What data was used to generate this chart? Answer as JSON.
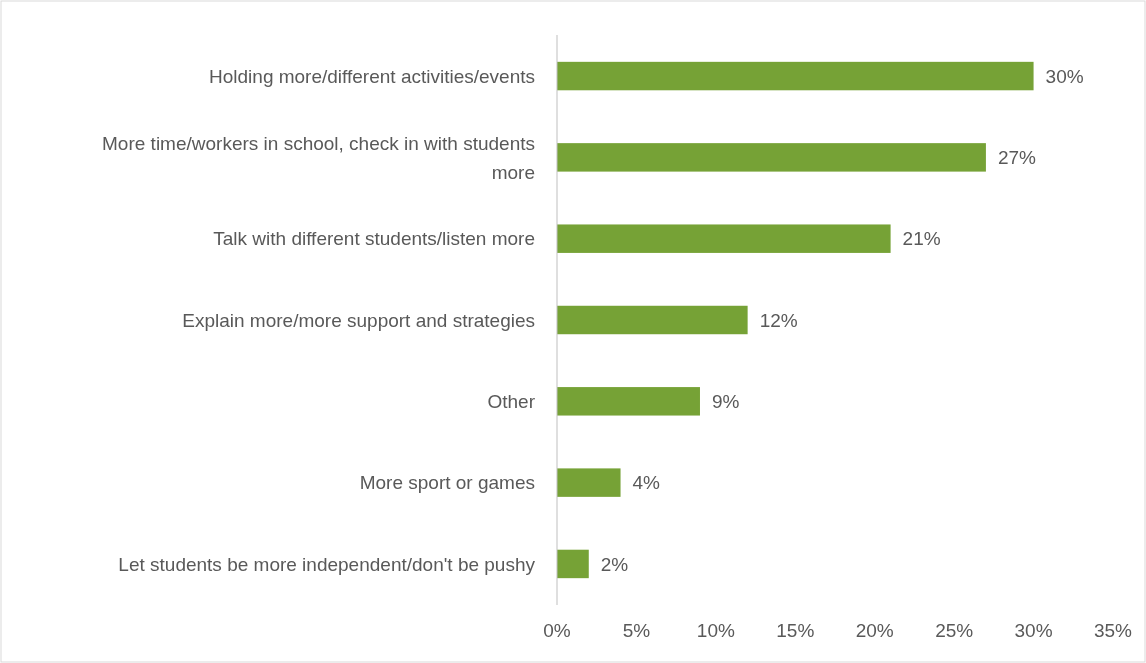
{
  "chart_data": {
    "type": "bar",
    "orientation": "horizontal",
    "categories": [
      "Holding more/different activities/events",
      "More time/workers in school, check in with students more",
      "Talk with different students/listen more",
      "Explain more/more support and strategies",
      "Other",
      "More sport or games",
      "Let students be more independent/don't be pushy"
    ],
    "values": [
      30,
      27,
      21,
      12,
      9,
      4,
      2
    ],
    "value_labels": [
      "30%",
      "27%",
      "21%",
      "12%",
      "9%",
      "4%",
      "2%"
    ],
    "color": "#76a236",
    "xlim": [
      0,
      35
    ],
    "xticks": [
      {
        "value": 0,
        "label": "0%"
      },
      {
        "value": 5,
        "label": "5%"
      },
      {
        "value": 10,
        "label": "10%"
      },
      {
        "value": 15,
        "label": "15%"
      },
      {
        "value": 20,
        "label": "20%"
      },
      {
        "value": 25,
        "label": "25%"
      },
      {
        "value": 30,
        "label": "30%"
      },
      {
        "value": 35,
        "label": "35%"
      }
    ],
    "grid": false
  }
}
